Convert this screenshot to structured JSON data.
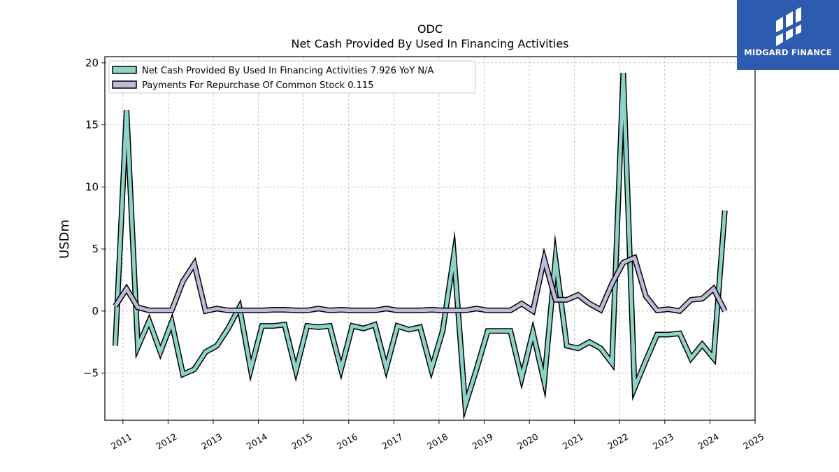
{
  "brand": {
    "name": "MIDGARD FINANCE",
    "bg_color": "#2d5bb0"
  },
  "chart_data": {
    "type": "line",
    "title": "ODC",
    "subtitle": "Net Cash Provided By Used In Financing Activities",
    "ylabel": "USDm",
    "xlabel": "",
    "xlim": [
      2010.6,
      2025.0
    ],
    "ylim": [
      -8.8,
      20.5
    ],
    "grid": true,
    "legend_position": "top-left",
    "yticks": [
      -5,
      0,
      5,
      10,
      15,
      20
    ],
    "xticks": [
      2011,
      2012,
      2013,
      2014,
      2015,
      2016,
      2017,
      2018,
      2019,
      2020,
      2021,
      2022,
      2023,
      2024,
      2025
    ],
    "series": [
      {
        "name": "Net Cash Provided By Used In Financing Activities",
        "legend_label": "Net Cash Provided By Used In Financing Activities  7.926 YoY N/A",
        "color": "#8dd3c7",
        "x": [
          2010.83,
          2011.08,
          2011.33,
          2011.58,
          2011.83,
          2012.08,
          2012.33,
          2012.58,
          2012.83,
          2013.08,
          2013.33,
          2013.58,
          2013.83,
          2014.08,
          2014.33,
          2014.58,
          2014.83,
          2015.08,
          2015.33,
          2015.58,
          2015.83,
          2016.08,
          2016.33,
          2016.58,
          2016.83,
          2017.08,
          2017.33,
          2017.58,
          2017.83,
          2018.08,
          2018.33,
          2018.58,
          2018.83,
          2019.08,
          2019.33,
          2019.58,
          2019.83,
          2020.08,
          2020.33,
          2020.58,
          2020.83,
          2021.08,
          2021.33,
          2021.58,
          2021.83,
          2022.08,
          2022.33,
          2022.58,
          2022.83,
          2023.08,
          2023.33,
          2023.58,
          2023.83,
          2024.08,
          2024.33
        ],
        "y": [
          -2.8,
          16.2,
          -2.9,
          -0.8,
          -3.3,
          -0.9,
          -5.1,
          -4.7,
          -3.3,
          -2.8,
          -1.4,
          0.3,
          -4.7,
          -1.2,
          -1.2,
          -1.1,
          -4.8,
          -1.2,
          -1.3,
          -1.2,
          -4.7,
          -1.2,
          -1.4,
          -1.1,
          -4.6,
          -1.2,
          -1.5,
          -1.3,
          -4.7,
          -1.6,
          4.5,
          -7.6,
          -4.7,
          -1.6,
          -1.6,
          -1.6,
          -5.4,
          -1.7,
          -5.7,
          4.2,
          -2.8,
          -3.0,
          -2.5,
          -3.0,
          -4.2,
          19.2,
          -6.2,
          -4.0,
          -1.9,
          -1.9,
          -1.8,
          -3.8,
          -2.7,
          -3.8,
          8.1
        ]
      },
      {
        "name": "Payments For Repurchase Of Common Stock",
        "legend_label": "Payments For Repurchase Of Common Stock  0.115",
        "color": "#bebada",
        "x": [
          2010.83,
          2011.08,
          2011.33,
          2011.58,
          2011.83,
          2012.08,
          2012.33,
          2012.58,
          2012.83,
          2013.08,
          2013.33,
          2013.58,
          2013.83,
          2014.08,
          2014.33,
          2014.58,
          2014.83,
          2015.08,
          2015.33,
          2015.58,
          2015.83,
          2016.08,
          2016.33,
          2016.58,
          2016.83,
          2017.08,
          2017.33,
          2017.58,
          2017.83,
          2018.08,
          2018.33,
          2018.58,
          2018.83,
          2019.08,
          2019.33,
          2019.58,
          2019.83,
          2020.08,
          2020.33,
          2020.58,
          2020.83,
          2021.08,
          2021.33,
          2021.58,
          2021.83,
          2022.08,
          2022.33,
          2022.58,
          2022.83,
          2023.08,
          2023.33,
          2023.58,
          2023.83,
          2024.08,
          2024.33
        ],
        "y": [
          0.4,
          1.8,
          0.3,
          0.05,
          0.05,
          0.05,
          2.4,
          3.8,
          0.0,
          0.2,
          0.05,
          0.05,
          0.05,
          0.05,
          0.1,
          0.1,
          0.05,
          0.05,
          0.2,
          0.05,
          0.1,
          0.05,
          0.05,
          0.05,
          0.2,
          0.05,
          0.05,
          0.05,
          0.1,
          0.05,
          0.05,
          0.05,
          0.2,
          0.05,
          0.05,
          0.05,
          0.6,
          0.0,
          4.2,
          0.9,
          0.9,
          1.3,
          0.6,
          0.1,
          2.2,
          3.9,
          4.3,
          1.2,
          0.05,
          0.15,
          0.0,
          0.9,
          1.0,
          1.8,
          0.0
        ]
      }
    ]
  }
}
